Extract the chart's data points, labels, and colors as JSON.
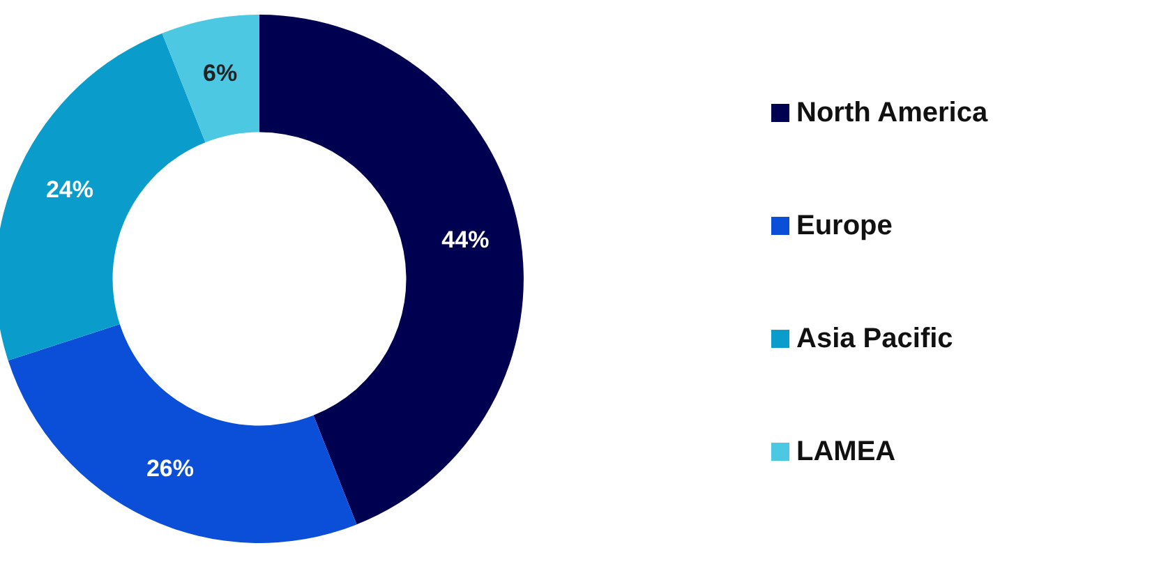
{
  "chart_data": {
    "type": "donut",
    "categories": [
      "North America",
      "Europe",
      "Asia Pacific",
      "LAMEA"
    ],
    "values": [
      44,
      26,
      24,
      6
    ],
    "colors": [
      "#000050",
      "#0b4fd8",
      "#0a9dcc",
      "#4cc8e2"
    ],
    "value_labels": [
      "44%",
      "26%",
      "24%",
      "6%"
    ],
    "legend": "right"
  }
}
